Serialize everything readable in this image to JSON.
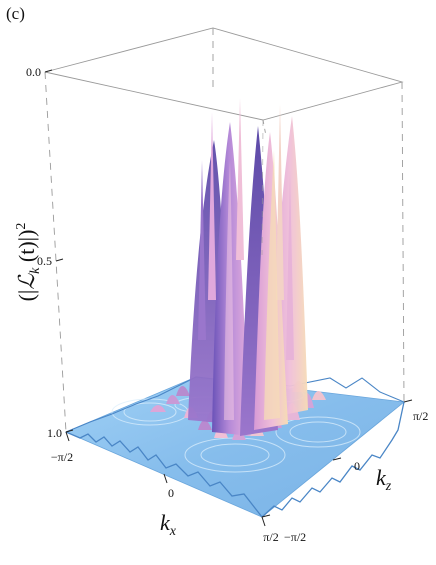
{
  "panel_label": "(c)",
  "chart_data": {
    "type": "surface3d",
    "title": "",
    "zlabel_parts": [
      "(|",
      "ℒ",
      "k",
      " (t)|)",
      "2"
    ],
    "xlabel_parts": [
      "k",
      "x"
    ],
    "ylabel_parts": [
      "k",
      "z"
    ],
    "x_ticks": [
      "−π/2",
      "0",
      "π/2"
    ],
    "y_ticks": [
      "−π/2",
      "0",
      "π/2"
    ],
    "z_ticks": [
      "0.0",
      "0.5",
      "1.0"
    ],
    "x_range": [
      -1.5708,
      1.5708
    ],
    "y_range": [
      -1.5708,
      1.5708
    ],
    "z_range": [
      0.0,
      1.0
    ],
    "z_axis_inverted": true,
    "surface_baseline": 1.0,
    "peak_min_value": 0.12,
    "surface_colors": {
      "base": "#8fc4ef",
      "low": "#e4a9dc",
      "mid": "#c38ad6",
      "high": "#7d62c4",
      "highlight": "#f3dcb4"
    }
  }
}
